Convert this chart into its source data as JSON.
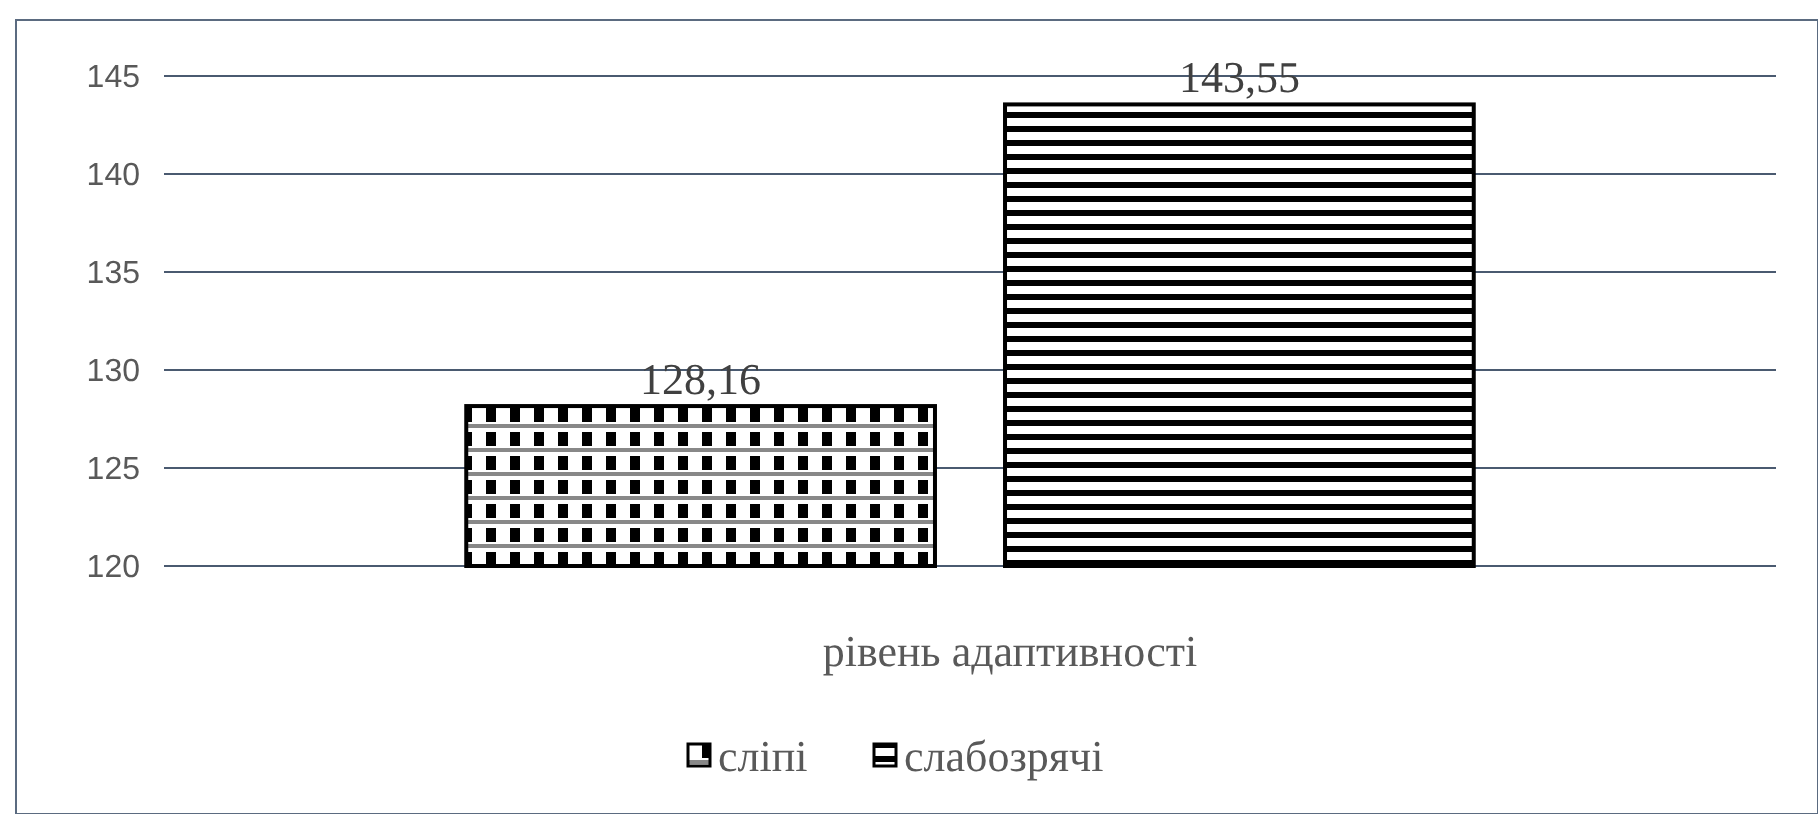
{
  "chart_data": {
    "type": "bar",
    "xlabel": "рівень адаптивності",
    "categories": [
      null
    ],
    "series": [
      {
        "name": "сліпі",
        "color": "#000000",
        "values": [
          128.16
        ],
        "value_labels": [
          "128,16"
        ]
      },
      {
        "name": "слабозрячі",
        "color": "#000000",
        "values": [
          143.55
        ],
        "value_labels": [
          "143,55"
        ]
      }
    ],
    "ylim": [
      120,
      145
    ],
    "yticks": [
      120,
      125,
      130,
      135,
      140,
      145
    ],
    "grid": "y",
    "legend": "bottom"
  }
}
